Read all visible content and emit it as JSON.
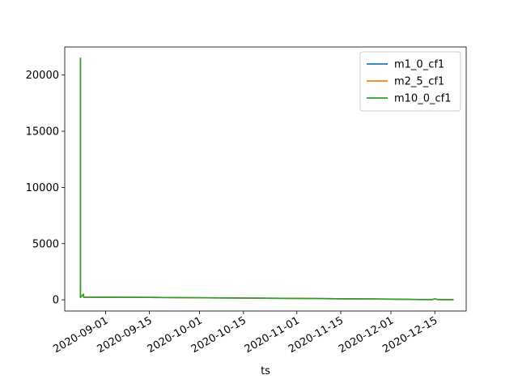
{
  "chart_data": {
    "type": "line",
    "title": "",
    "xlabel": "ts",
    "ylabel": "",
    "xlim": [
      "2020-08-19",
      "2020-12-25"
    ],
    "ylim": [
      -1000,
      22500
    ],
    "x_ticks": [
      "2020-09-01",
      "2020-09-15",
      "2020-10-01",
      "2020-10-15",
      "2020-11-01",
      "2020-11-15",
      "2020-12-01",
      "2020-12-15"
    ],
    "y_ticks": [
      0,
      5000,
      10000,
      15000,
      20000
    ],
    "grid": false,
    "legend_position": "top-right",
    "series": [
      {
        "name": "m1_0_cf1",
        "color": "#1f77b4",
        "points": [
          [
            "2020-08-24",
            250
          ],
          [
            "2020-08-24",
            21500
          ],
          [
            "2020-08-24",
            200
          ],
          [
            "2020-08-25",
            500
          ],
          [
            "2020-08-25",
            230
          ],
          [
            "2020-09-15",
            210
          ],
          [
            "2020-10-01",
            180
          ],
          [
            "2020-11-01",
            120
          ],
          [
            "2020-12-01",
            60
          ],
          [
            "2020-12-14",
            10
          ],
          [
            "2020-12-15",
            80
          ],
          [
            "2020-12-16",
            20
          ],
          [
            "2020-12-21",
            5
          ]
        ]
      },
      {
        "name": "m2_5_cf1",
        "color": "#ff7f0e",
        "points": [
          [
            "2020-08-24",
            250
          ],
          [
            "2020-08-24",
            21500
          ],
          [
            "2020-08-24",
            200
          ],
          [
            "2020-08-25",
            500
          ],
          [
            "2020-08-25",
            230
          ],
          [
            "2020-09-15",
            210
          ],
          [
            "2020-10-01",
            180
          ],
          [
            "2020-11-01",
            120
          ],
          [
            "2020-12-01",
            60
          ],
          [
            "2020-12-14",
            10
          ],
          [
            "2020-12-15",
            80
          ],
          [
            "2020-12-16",
            20
          ],
          [
            "2020-12-21",
            5
          ]
        ]
      },
      {
        "name": "m10_0_cf1",
        "color": "#2ca02c",
        "points": [
          [
            "2020-08-24",
            250
          ],
          [
            "2020-08-24",
            21500
          ],
          [
            "2020-08-24",
            200
          ],
          [
            "2020-08-25",
            500
          ],
          [
            "2020-08-25",
            230
          ],
          [
            "2020-09-15",
            210
          ],
          [
            "2020-10-01",
            180
          ],
          [
            "2020-11-01",
            120
          ],
          [
            "2020-12-01",
            60
          ],
          [
            "2020-12-14",
            10
          ],
          [
            "2020-12-15",
            80
          ],
          [
            "2020-12-16",
            20
          ],
          [
            "2020-12-21",
            5
          ]
        ]
      }
    ]
  }
}
